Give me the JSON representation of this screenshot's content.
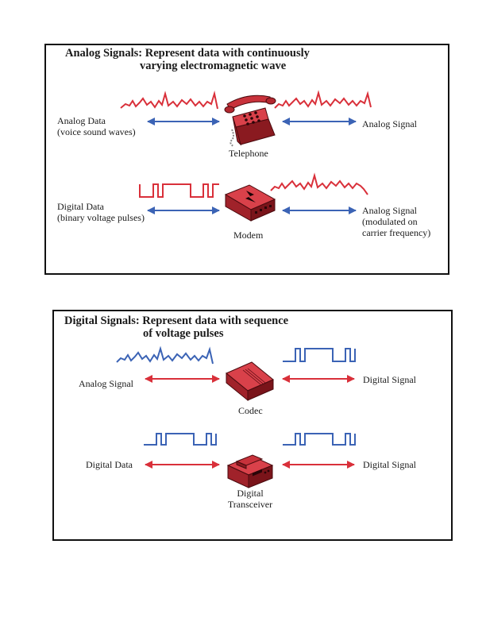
{
  "analog_panel": {
    "title_line1": "Analog Signals: Represent data with continuously",
    "title_line2": "varying electromagnetic wave",
    "row1": {
      "left_line1": "Analog Data",
      "left_line2": "(voice sound waves)",
      "device": "Telephone",
      "right_line1": "Analog Signal"
    },
    "row2": {
      "left_line1": "Digital Data",
      "left_line2": "(binary voltage pulses)",
      "device": "Modem",
      "right_line1": "Analog Signal",
      "right_line2": "(modulated on",
      "right_line3": "carrier frequency)"
    }
  },
  "digital_panel": {
    "title_line1": "Digital Signals: Represent data with sequence",
    "title_line2": "of voltage pulses",
    "row1": {
      "left_line1": "Analog Signal",
      "device": "Codec",
      "right_line1": "Digital Signal"
    },
    "row2": {
      "left_line1": "Digital Data",
      "device_line1": "Digital",
      "device_line2": "Transceiver",
      "right_line1": "Digital Signal"
    }
  },
  "colors": {
    "analog_wave": "#d9303a",
    "analog_arrow": "#3b63b5",
    "digital_wave": "#3b63b5",
    "digital_arrow": "#d9303a",
    "device_red": "#b3262e"
  },
  "icons": {
    "telephone": "telephone-icon",
    "modem": "modem-icon",
    "codec": "codec-icon",
    "transceiver": "transceiver-icon"
  }
}
